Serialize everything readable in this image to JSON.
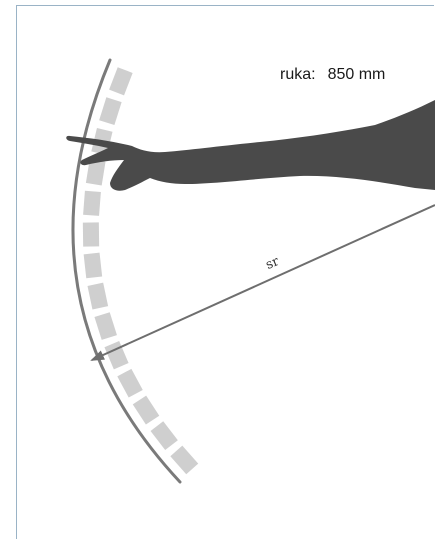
{
  "arm_length": {
    "label": "ruka:",
    "value": "850 mm"
  },
  "radius_label": "sr",
  "colors": {
    "frame": "#9ab3c6",
    "arc": "#7a7a7a",
    "ticks": "#cfcfcf",
    "arm": "#4a4a4a",
    "arrow": "#6e6e6e"
  },
  "icons": {
    "arm": "reaching-arm-silhouette"
  }
}
